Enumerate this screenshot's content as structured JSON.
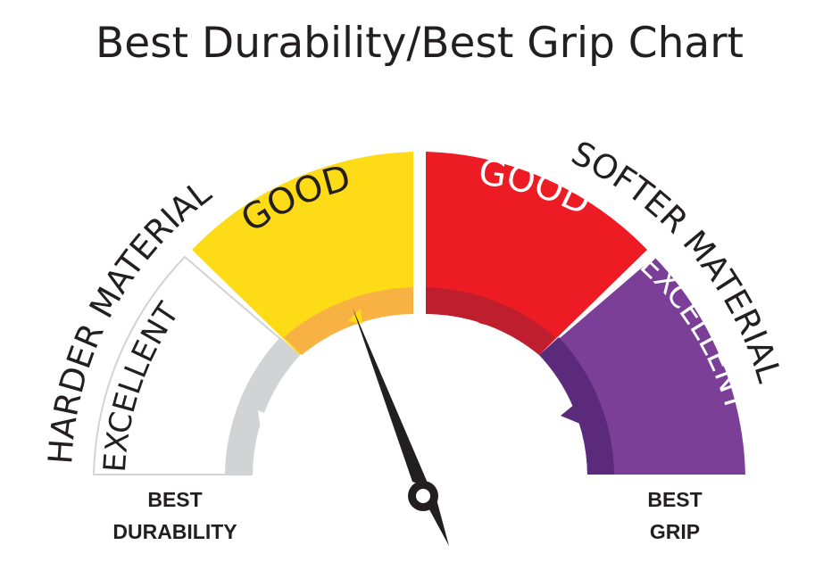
{
  "title": "Best Durability/Best Grip Chart",
  "outer_labels": {
    "left": "HARDER MATERIAL",
    "right": "SOFTER MATERIAL"
  },
  "segments": [
    {
      "label": "EXCELLENT",
      "fill": "#ffffff",
      "inner_fill": "#d1d3d4",
      "text_color": "#231f20"
    },
    {
      "label": "GOOD",
      "fill": "#fddb16",
      "inner_fill": "#f8b244",
      "text_color": "#231f20"
    },
    {
      "label": "GOOD",
      "fill": "#ed1c24",
      "inner_fill": "#be1e2d",
      "text_color": "#ffffff"
    },
    {
      "label": "EXCELLENT",
      "fill": "#7b3f98",
      "inner_fill": "#5b2a7a",
      "text_color": "#ffffff"
    }
  ],
  "bottom_labels": {
    "left_line1": "BEST",
    "left_line2": "DURABILITY",
    "right_line1": "BEST",
    "right_line2": "GRIP"
  },
  "colors": {
    "text": "#231f20",
    "needle": "#231f20",
    "outline": "#d1d3d4"
  }
}
